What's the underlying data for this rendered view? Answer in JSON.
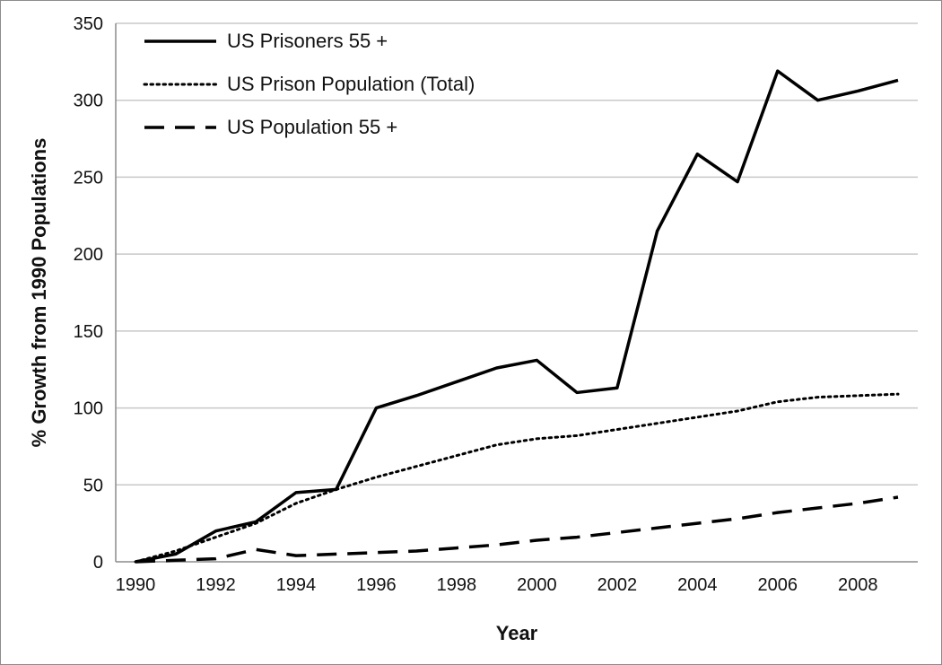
{
  "chart_data": {
    "type": "line",
    "title": "",
    "xlabel": "Year",
    "ylabel": "% Growth from 1990 Populations",
    "ylim": [
      0,
      350
    ],
    "xlim": [
      1990,
      2009
    ],
    "yticks": [
      0,
      50,
      100,
      150,
      200,
      250,
      300,
      350
    ],
    "xticks": [
      1990,
      1992,
      1994,
      1996,
      1998,
      2000,
      2002,
      2004,
      2006,
      2008
    ],
    "ytick_labels": [
      "0",
      "50",
      "100",
      "150",
      "200",
      "250",
      "300",
      "350"
    ],
    "xtick_labels": [
      "1990",
      "1992",
      "1994",
      "1996",
      "1998",
      "2000",
      "2002",
      "2004",
      "2006",
      "2008"
    ],
    "grid": "horizontal",
    "legend_position": "top-left",
    "x": [
      1990,
      1991,
      1992,
      1993,
      1994,
      1995,
      1996,
      1997,
      1998,
      1999,
      2000,
      2001,
      2002,
      2003,
      2004,
      2005,
      2006,
      2007,
      2008,
      2009
    ],
    "series": [
      {
        "name": "US Prisoners 55 +",
        "style": "solid",
        "values": [
          0,
          5,
          20,
          26,
          45,
          47,
          100,
          108,
          117,
          126,
          131,
          110,
          113,
          215,
          265,
          247,
          319,
          300,
          306,
          313
        ]
      },
      {
        "name": "US Prison Population (Total)",
        "style": "dotted",
        "values": [
          0,
          7,
          16,
          25,
          38,
          47,
          55,
          62,
          69,
          76,
          80,
          82,
          86,
          90,
          94,
          98,
          104,
          107,
          108,
          109
        ]
      },
      {
        "name": "US Population 55 +",
        "style": "dashed",
        "values": [
          0,
          1,
          2,
          8,
          4,
          5,
          6,
          7,
          9,
          11,
          14,
          16,
          19,
          22,
          25,
          28,
          32,
          35,
          38,
          42
        ]
      }
    ],
    "colors": {
      "line": "#000000",
      "grid": "#c8c8c8",
      "border": "#8c8c8c"
    }
  }
}
